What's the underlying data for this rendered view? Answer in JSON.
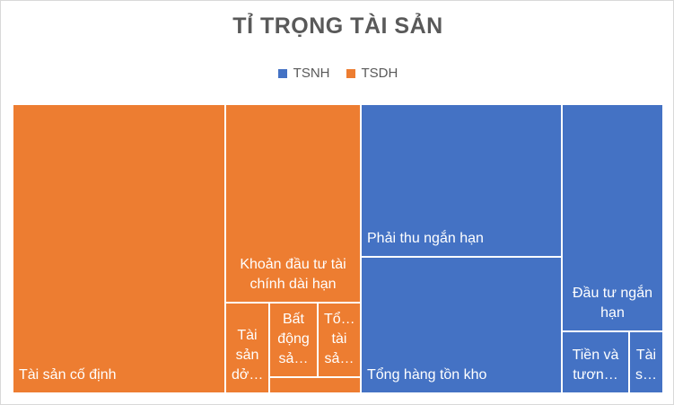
{
  "chart_data": {
    "type": "treemap",
    "title": "TỈ TRỌNG TÀI SẢN",
    "legend_position": "top",
    "legend": [
      {
        "name": "TSNH",
        "color": "#4472C4"
      },
      {
        "name": "TSDH",
        "color": "#ED7D31"
      }
    ],
    "series": [
      {
        "name": "TSDH",
        "color": "#ED7D31",
        "items": [
          {
            "label": "Tài sản cố định",
            "value": 36
          },
          {
            "label": "Khoản đầu tư tài chính dài hạn",
            "value": 12
          },
          {
            "label": "Tài sản dở…",
            "value": 3.7
          },
          {
            "label": "Bất động sả…",
            "value": 3.1
          },
          {
            "label": "Tổ… tài sả…",
            "value": 2.6
          },
          {
            "label": "",
            "value": 1.3
          }
        ]
      },
      {
        "name": "TSNH",
        "color": "#4472C4",
        "items": [
          {
            "label": "Phải thu ngắn hạn",
            "value": 16.5
          },
          {
            "label": "Tổng hàng tồn kho",
            "value": 14.5
          },
          {
            "label": "Đầu tư ngắn hạn",
            "value": 10.5
          },
          {
            "label": "Tiền và tươn…",
            "value": 3.7
          },
          {
            "label": "Tài s…",
            "value": 1.5
          }
        ]
      }
    ]
  }
}
